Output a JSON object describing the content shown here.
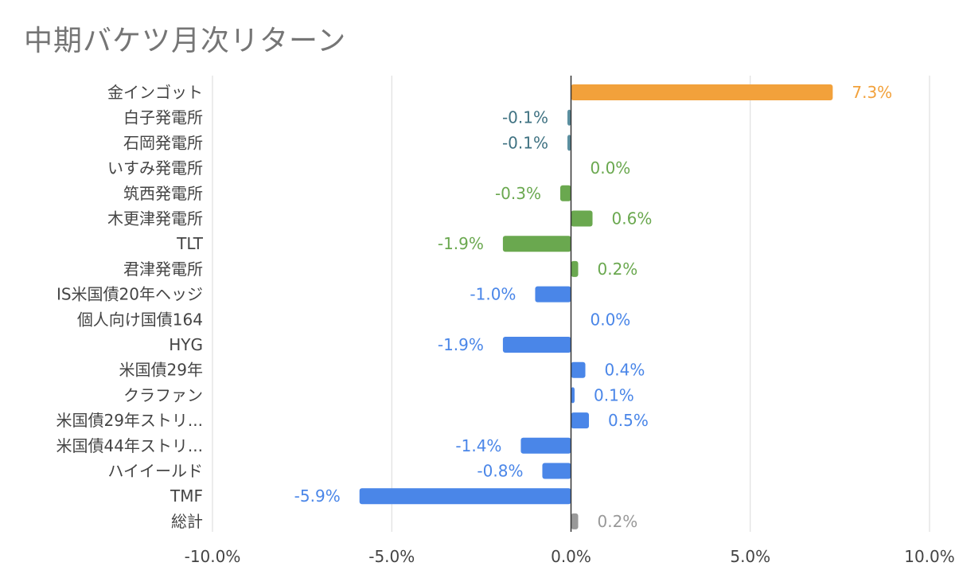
{
  "title": "中期バケツ月次リターン",
  "chart_data": {
    "type": "bar",
    "orientation": "horizontal",
    "title": "中期バケツ月次リターン",
    "xlim": [
      -10,
      10
    ],
    "xticks": [
      -10,
      -5,
      0,
      5,
      10
    ],
    "tick_labels": [
      "-10.0%",
      "-5.0%",
      "0.0%",
      "5.0%",
      "10.0%"
    ],
    "grid": true,
    "categories": [
      {
        "label": "金インゴット",
        "value": 7.3,
        "value_label": "7.3%",
        "color": "#f2a13b",
        "label_color": "#f2a13b"
      },
      {
        "label": "白子発電所",
        "value": -0.1,
        "value_label": "-0.1%",
        "color": "#5b8fa0",
        "label_color": "#3f7282"
      },
      {
        "label": "石岡発電所",
        "value": -0.1,
        "value_label": "-0.1%",
        "color": "#5b8fa0",
        "label_color": "#3f7282"
      },
      {
        "label": "いすみ発電所",
        "value": 0.0,
        "value_label": "0.0%",
        "color": "#6aa84f",
        "label_color": "#6aa84f"
      },
      {
        "label": "筑西発電所",
        "value": -0.3,
        "value_label": "-0.3%",
        "color": "#6aa84f",
        "label_color": "#6aa84f"
      },
      {
        "label": "木更津発電所",
        "value": 0.6,
        "value_label": "0.6%",
        "color": "#6aa84f",
        "label_color": "#6aa84f"
      },
      {
        "label": "TLT",
        "value": -1.9,
        "value_label": "-1.9%",
        "color": "#6aa84f",
        "label_color": "#6aa84f"
      },
      {
        "label": "君津発電所",
        "value": 0.2,
        "value_label": "0.2%",
        "color": "#6aa84f",
        "label_color": "#6aa84f"
      },
      {
        "label": "IS米国債20年ヘッジ",
        "value": -1.0,
        "value_label": "-1.0%",
        "color": "#4a86e8",
        "label_color": "#4a86e8"
      },
      {
        "label": "個人向け国債164",
        "value": 0.0,
        "value_label": "0.0%",
        "color": "#4a86e8",
        "label_color": "#4a86e8"
      },
      {
        "label": "HYG",
        "value": -1.9,
        "value_label": "-1.9%",
        "color": "#4a86e8",
        "label_color": "#4a86e8"
      },
      {
        "label": "米国債29年",
        "value": 0.4,
        "value_label": "0.4%",
        "color": "#4a86e8",
        "label_color": "#4a86e8"
      },
      {
        "label": "クラファン",
        "value": 0.1,
        "value_label": "0.1%",
        "color": "#4a86e8",
        "label_color": "#4a86e8"
      },
      {
        "label": "米国債29年ストリ...",
        "value": 0.5,
        "value_label": "0.5%",
        "color": "#4a86e8",
        "label_color": "#4a86e8"
      },
      {
        "label": "米国債44年ストリ...",
        "value": -1.4,
        "value_label": "-1.4%",
        "color": "#4a86e8",
        "label_color": "#4a86e8"
      },
      {
        "label": "ハイイールド",
        "value": -0.8,
        "value_label": "-0.8%",
        "color": "#4a86e8",
        "label_color": "#4a86e8"
      },
      {
        "label": "TMF",
        "value": -5.9,
        "value_label": "-5.9%",
        "color": "#4a86e8",
        "label_color": "#4a86e8"
      },
      {
        "label": "総計",
        "value": 0.2,
        "value_label": "0.2%",
        "color": "#999999",
        "label_color": "#999999"
      }
    ]
  }
}
